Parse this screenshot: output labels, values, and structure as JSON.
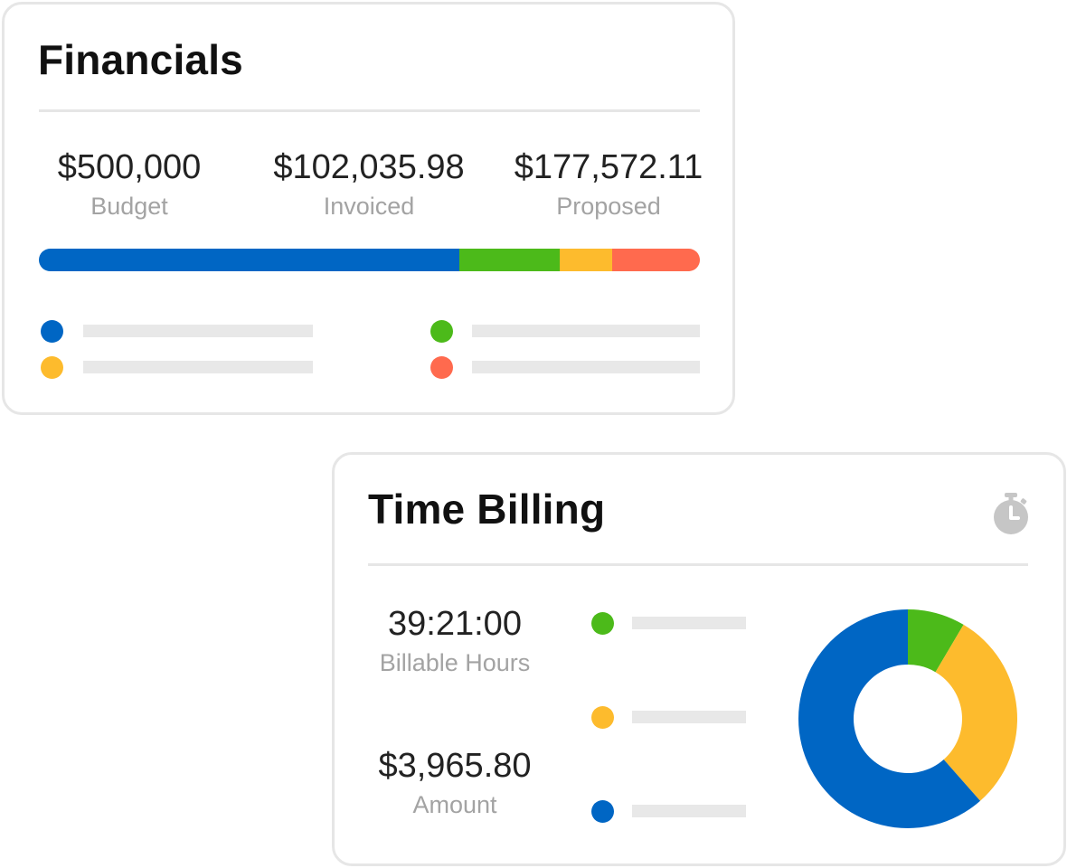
{
  "colors": {
    "blue": "#0066c4",
    "green": "#4cba1a",
    "yellow": "#fdbb2d",
    "red": "#ff6a4e"
  },
  "financials": {
    "title": "Financials",
    "stats": [
      {
        "value": "$500,000",
        "label": "Budget"
      },
      {
        "value": "$102,035.98",
        "label": "Invoiced"
      },
      {
        "value": "$177,572.11",
        "label": "Proposed"
      }
    ],
    "bar_segments": [
      {
        "color": "#0066c4",
        "fraction": 0.636
      },
      {
        "color": "#4cba1a",
        "fraction": 0.152
      },
      {
        "color": "#fdbb2d",
        "fraction": 0.08
      },
      {
        "color": "#ff6a4e",
        "fraction": 0.132
      }
    ],
    "legend": [
      {
        "color": "#0066c4"
      },
      {
        "color": "#fdbb2d"
      },
      {
        "color": "#4cba1a"
      },
      {
        "color": "#ff6a4e"
      }
    ]
  },
  "time_billing": {
    "title": "Time Billing",
    "icon": "stopwatch-icon",
    "stats": [
      {
        "value": "39:21:00",
        "label": "Billable Hours"
      },
      {
        "value": "$3,965.80",
        "label": "Amount"
      }
    ],
    "legend": [
      {
        "color": "#4cba1a"
      },
      {
        "color": "#fdbb2d"
      },
      {
        "color": "#0066c4"
      }
    ],
    "donut_segments": [
      {
        "color": "#4cba1a",
        "fraction": 0.085
      },
      {
        "color": "#fdbb2d",
        "fraction": 0.3
      },
      {
        "color": "#0066c4",
        "fraction": 0.615
      }
    ]
  }
}
